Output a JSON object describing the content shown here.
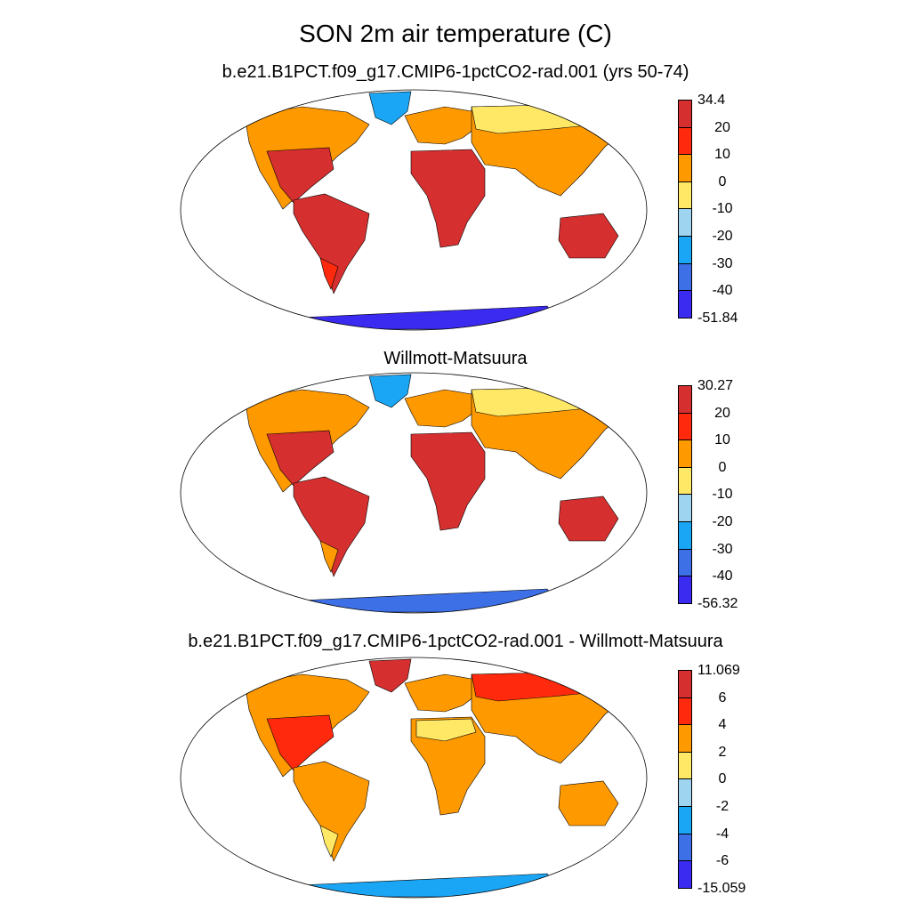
{
  "main_title": "SON 2m air temperature (C)",
  "panels": [
    {
      "title": "b.e21.B1PCT.f09_g17.CMIP6-1pctCO2-rad.001 (yrs 50-74)",
      "colorbar": {
        "labels": [
          "34.4",
          "20",
          "10",
          "0",
          "-10",
          "-20",
          "-30",
          "-40",
          "-51.84"
        ],
        "colors": [
          "#d62f2f",
          "#ff2a0e",
          "#ff9900",
          "#ffe866",
          "#9fd4f0",
          "#1aa6f5",
          "#3d6fe6",
          "#3b2bf0"
        ]
      }
    },
    {
      "title": "Willmott-Matsuura",
      "colorbar": {
        "labels": [
          "30.27",
          "20",
          "10",
          "0",
          "-10",
          "-20",
          "-30",
          "-40",
          "-56.32"
        ],
        "colors": [
          "#d62f2f",
          "#ff2a0e",
          "#ff9900",
          "#ffe866",
          "#9fd4f0",
          "#1aa6f5",
          "#3d6fe6",
          "#3b2bf0"
        ]
      }
    },
    {
      "title": "b.e21.B1PCT.f09_g17.CMIP6-1pctCO2-rad.001 - Willmott-Matsuura",
      "colorbar": {
        "labels": [
          "11.069",
          "6",
          "4",
          "2",
          "0",
          "-2",
          "-4",
          "-6",
          "-15.059"
        ],
        "colors": [
          "#d62f2f",
          "#ff2a0e",
          "#ff9900",
          "#ffe866",
          "#9fd4f0",
          "#1aa6f5",
          "#3d6fe6",
          "#3b2bf0"
        ]
      }
    }
  ]
}
